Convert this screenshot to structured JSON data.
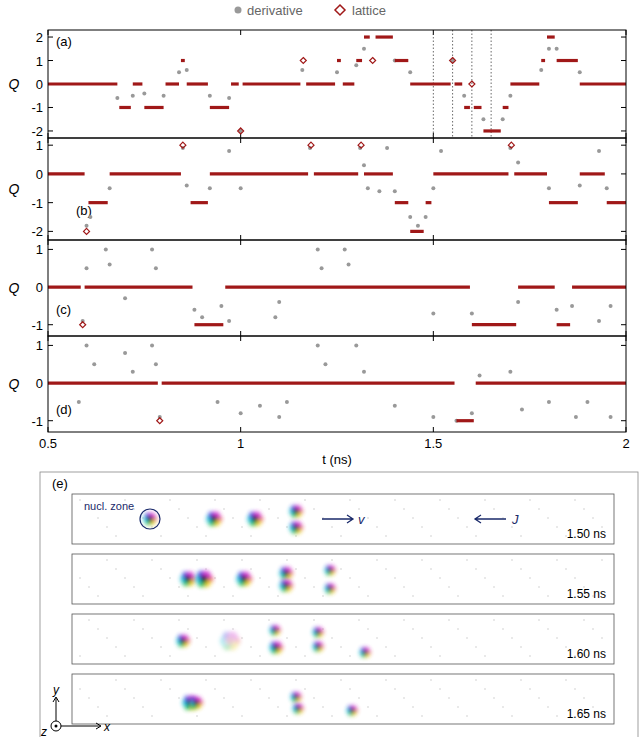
{
  "chart_data": [
    {
      "type": "scatter",
      "panel_label": "(a)",
      "y_label": "Q",
      "tick_labels": "y",
      "xlim": [
        0.5,
        2
      ],
      "xticks": [
        0.5,
        1,
        1.5,
        2
      ],
      "ylim": [
        -2.3,
        2.3
      ],
      "yticks": [
        -2,
        -1,
        0,
        1,
        2
      ],
      "vlines": [
        1.5,
        1.55,
        1.6,
        1.65
      ],
      "series": [
        {
          "name": "derivative",
          "color": "#999999",
          "marker": "circle",
          "x": [
            0.68,
            0.72,
            0.75,
            0.8,
            0.84,
            0.86,
            0.92,
            0.97,
            1.0,
            1.16,
            1.25,
            1.3,
            1.32,
            1.4,
            1.44,
            1.55,
            1.58,
            1.63,
            1.68,
            1.7,
            1.78,
            1.8,
            1.82,
            1.88
          ],
          "values": [
            -0.6,
            -0.5,
            -0.4,
            -0.5,
            0.5,
            0.6,
            -0.5,
            -0.6,
            -2,
            0.6,
            0.5,
            0.8,
            1.5,
            1,
            0.5,
            1,
            -0.5,
            -1.5,
            -1.5,
            -0.5,
            0.6,
            1.5,
            1.5,
            0.5
          ]
        },
        {
          "name": "lattice",
          "color": "#a01818",
          "marker": "diamond",
          "x_start": [
            0.5,
            0.685,
            0.72,
            0.75,
            0.805,
            0.845,
            0.86,
            0.92,
            0.975,
            1.0,
            1.005,
            1.16,
            1.17,
            1.25,
            1.265,
            1.3,
            1.32,
            1.34,
            1.35,
            1.4,
            1.44,
            1.55,
            1.555,
            1.58,
            1.6,
            1.605,
            1.63,
            1.68,
            1.7,
            1.78,
            1.795,
            1.82,
            1.88
          ],
          "x_end": [
            0.68,
            0.715,
            0.745,
            0.8,
            0.84,
            0.855,
            0.915,
            0.97,
            0.995,
            1.0,
            1.155,
            1.165,
            1.245,
            1.26,
            1.295,
            1.315,
            1.335,
            1.345,
            1.395,
            1.435,
            1.545,
            1.55,
            1.575,
            1.595,
            1.6,
            1.625,
            1.675,
            1.695,
            1.775,
            1.79,
            1.815,
            1.875,
            2.0
          ],
          "values": [
            0,
            -1,
            0,
            -1,
            0,
            1,
            0,
            -1,
            0,
            -2,
            0,
            1,
            0,
            1,
            0,
            1,
            2,
            1,
            2,
            1,
            0,
            1,
            0,
            -1,
            0,
            -1,
            -2,
            -1,
            0,
            1,
            2,
            1,
            0
          ]
        }
      ]
    },
    {
      "type": "scatter",
      "panel_label": "(b)",
      "y_label": "Q",
      "tick_labels": "y",
      "xlim": [
        0.5,
        2
      ],
      "xticks": [
        0.5,
        1,
        1.5,
        2
      ],
      "ylim": [
        -2.3,
        1.25
      ],
      "yticks": [
        -2,
        -1,
        0,
        1
      ],
      "series": [
        {
          "name": "derivative",
          "color": "#999999",
          "marker": "circle",
          "x": [
            0.6,
            0.61,
            0.66,
            0.85,
            0.86,
            0.92,
            0.97,
            1.0,
            1.18,
            1.31,
            1.32,
            1.33,
            1.36,
            1.38,
            1.4,
            1.44,
            1.46,
            1.48,
            1.5,
            1.52,
            1.7,
            1.72,
            1.8,
            1.88,
            1.93,
            1.95
          ],
          "values": [
            -1.8,
            -1.5,
            -0.5,
            0.9,
            -0.4,
            -0.5,
            0.8,
            -0.5,
            0.9,
            0.9,
            0.3,
            -0.5,
            -0.6,
            0.9,
            -0.6,
            -1.5,
            -1.8,
            -1.5,
            -0.5,
            0.8,
            0.9,
            0.4,
            -0.5,
            -0.4,
            0.8,
            -0.5
          ]
        },
        {
          "name": "lattice",
          "color": "#a01818",
          "marker": "diamond",
          "x_start": [
            0.5,
            0.6,
            0.605,
            0.66,
            0.85,
            0.87,
            0.92,
            1.18,
            1.19,
            1.31,
            1.32,
            1.4,
            1.44,
            1.48,
            1.5,
            1.7,
            1.71,
            1.8,
            1.88,
            1.95
          ],
          "x_end": [
            0.595,
            0.6,
            0.655,
            0.845,
            0.85,
            0.915,
            1.175,
            1.185,
            1.305,
            1.315,
            1.395,
            1.435,
            1.475,
            1.495,
            1.695,
            1.705,
            1.795,
            1.875,
            1.945,
            2.0
          ],
          "values": [
            0,
            -2,
            -1,
            0,
            1,
            -1,
            0,
            1,
            0,
            1,
            0,
            -1,
            -2,
            -1,
            0,
            1,
            0,
            -1,
            0,
            -1
          ]
        }
      ]
    },
    {
      "type": "scatter",
      "panel_label": "(c)",
      "y_label": "Q",
      "tick_labels": "y",
      "xlim": [
        0.5,
        2
      ],
      "xticks": [
        0.5,
        1,
        1.5,
        2
      ],
      "ylim": [
        -1.3,
        1.25
      ],
      "yticks": [
        -1,
        0,
        1
      ],
      "series": [
        {
          "name": "derivative",
          "color": "#999999",
          "marker": "circle",
          "x": [
            0.59,
            0.6,
            0.65,
            0.66,
            0.7,
            0.77,
            0.78,
            0.88,
            0.9,
            0.95,
            0.97,
            1.09,
            1.1,
            1.2,
            1.21,
            1.27,
            1.28,
            1.5,
            1.6,
            1.72,
            1.82,
            1.86,
            1.93,
            1.96
          ],
          "values": [
            -0.9,
            0.5,
            1,
            0.6,
            -0.3,
            1,
            0.5,
            -0.6,
            -0.8,
            -0.5,
            -0.9,
            -0.8,
            -0.4,
            1,
            0.5,
            1,
            0.6,
            -0.7,
            -0.7,
            -0.4,
            -0.6,
            -0.5,
            -0.9,
            -0.5
          ]
        },
        {
          "name": "lattice",
          "color": "#a01818",
          "marker": "diamond",
          "x_start": [
            0.5,
            0.59,
            0.595,
            0.88,
            0.96,
            1.6,
            1.72,
            1.82,
            1.86
          ],
          "x_end": [
            0.585,
            0.59,
            0.875,
            0.955,
            1.595,
            1.715,
            1.815,
            1.855,
            2.0
          ],
          "values": [
            0,
            -1,
            0,
            -1,
            0,
            -1,
            0,
            -1,
            0
          ]
        }
      ]
    },
    {
      "type": "scatter",
      "panel_label": "(d)",
      "y_label": "Q",
      "x_label": "t (ns)",
      "xlim": [
        0.5,
        2
      ],
      "xticks": [
        0.5,
        1,
        1.5,
        2
      ],
      "ylim": [
        -1.3,
        1.25
      ],
      "yticks": [
        -1,
        0,
        1
      ],
      "series": [
        {
          "name": "derivative",
          "color": "#999999",
          "marker": "circle",
          "x": [
            0.58,
            0.6,
            0.62,
            0.7,
            0.72,
            0.77,
            0.78,
            0.79,
            0.94,
            1.0,
            1.05,
            1.1,
            1.12,
            1.2,
            1.22,
            1.3,
            1.32,
            1.4,
            1.5,
            1.56,
            1.6,
            1.62,
            1.7,
            1.73,
            1.8,
            1.87,
            1.9,
            1.96
          ],
          "values": [
            -0.5,
            1,
            0.5,
            0.8,
            0.3,
            1,
            0.5,
            -0.9,
            -0.5,
            -0.8,
            -0.6,
            -0.9,
            -0.5,
            1,
            0.5,
            1,
            0.3,
            -0.6,
            -0.9,
            -1,
            -0.8,
            0.2,
            0.3,
            -0.7,
            -0.5,
            -0.9,
            -0.5,
            -0.9
          ]
        },
        {
          "name": "lattice",
          "color": "#a01818",
          "marker": "diamond",
          "x_start": [
            0.5,
            0.79,
            0.795,
            1.56,
            1.61
          ],
          "x_end": [
            0.785,
            0.79,
            1.555,
            1.605,
            2.0
          ],
          "values": [
            0,
            -1,
            0,
            -1,
            0
          ]
        }
      ]
    }
  ],
  "snapshots": {
    "panel_label": "(e)",
    "nucleation_label": "nucl. zone",
    "velocity_label": "v",
    "current_label": "J",
    "times": [
      "1.50 ns",
      "1.55 ns",
      "1.60 ns",
      "1.65 ns"
    ],
    "axes": [
      "x",
      "y",
      "z"
    ]
  }
}
